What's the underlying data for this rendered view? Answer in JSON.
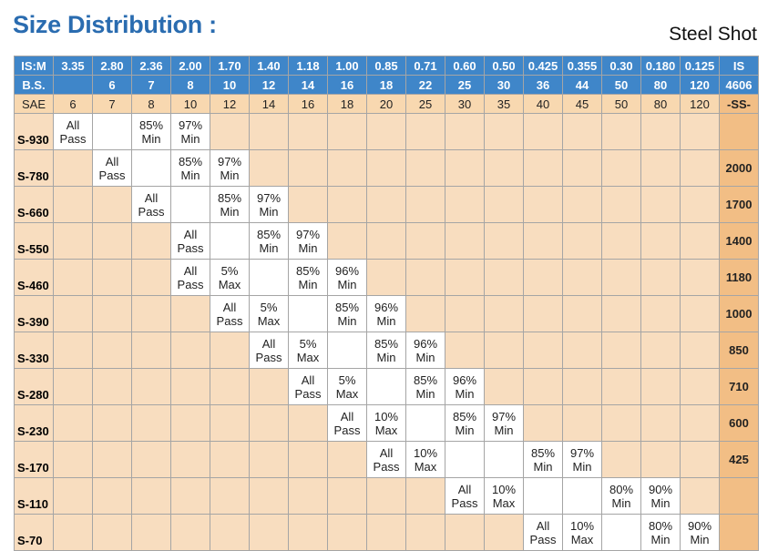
{
  "title": "Size Distribution :",
  "subtitle": "Steel Shot",
  "headers": {
    "ism": {
      "label": "IS:M",
      "values": [
        "3.35",
        "2.80",
        "2.36",
        "2.00",
        "1.70",
        "1.40",
        "1.18",
        "1.00",
        "0.85",
        "0.71",
        "0.60",
        "0.50",
        "0.425",
        "0.355",
        "0.30",
        "0.180",
        "0.125"
      ],
      "last": "IS"
    },
    "bs": {
      "label": "B.S.",
      "values": [
        "",
        "6",
        "7",
        "8",
        "10",
        "12",
        "14",
        "16",
        "18",
        "22",
        "25",
        "30",
        "36",
        "44",
        "50",
        "80",
        "120"
      ],
      "last": "4606"
    },
    "sae": {
      "label": "SAE",
      "values": [
        "6",
        "7",
        "8",
        "10",
        "12",
        "14",
        "16",
        "18",
        "20",
        "25",
        "30",
        "35",
        "40",
        "45",
        "50",
        "80",
        "120"
      ],
      "last": "-SS-"
    }
  },
  "rows": [
    {
      "label": "S-930",
      "cells": [
        {
          "c": 0,
          "l1": "All",
          "l2": "Pass"
        },
        {
          "c": 2,
          "l1": "85%",
          "l2": "Min"
        },
        {
          "c": 3,
          "l1": "97%",
          "l2": "Min"
        }
      ],
      "white": [
        0,
        1,
        2,
        3
      ],
      "last": ""
    },
    {
      "label": "S-780",
      "cells": [
        {
          "c": 1,
          "l1": "All",
          "l2": "Pass"
        },
        {
          "c": 3,
          "l1": "85%",
          "l2": "Min"
        },
        {
          "c": 4,
          "l1": "97%",
          "l2": "Min"
        }
      ],
      "white": [
        1,
        2,
        3,
        4
      ],
      "last": "2000"
    },
    {
      "label": "S-660",
      "cells": [
        {
          "c": 2,
          "l1": "All",
          "l2": "Pass"
        },
        {
          "c": 4,
          "l1": "85%",
          "l2": "Min"
        },
        {
          "c": 5,
          "l1": "97%",
          "l2": "Min"
        }
      ],
      "white": [
        2,
        3,
        4,
        5
      ],
      "last": "1700"
    },
    {
      "label": "S-550",
      "cells": [
        {
          "c": 3,
          "l1": "All",
          "l2": "Pass"
        },
        {
          "c": 5,
          "l1": "85%",
          "l2": "Min"
        },
        {
          "c": 6,
          "l1": "97%",
          "l2": "Min"
        }
      ],
      "white": [
        3,
        4,
        5,
        6
      ],
      "last": "1400"
    },
    {
      "label": "S-460",
      "cells": [
        {
          "c": 3,
          "l1": "All",
          "l2": "Pass"
        },
        {
          "c": 4,
          "l1": "5%",
          "l2": "Max"
        },
        {
          "c": 6,
          "l1": "85%",
          "l2": "Min"
        },
        {
          "c": 7,
          "l1": "96%",
          "l2": "Min"
        }
      ],
      "white": [
        3,
        4,
        5,
        6,
        7
      ],
      "last": "1180"
    },
    {
      "label": "S-390",
      "cells": [
        {
          "c": 4,
          "l1": "All",
          "l2": "Pass"
        },
        {
          "c": 5,
          "l1": "5%",
          "l2": "Max"
        },
        {
          "c": 7,
          "l1": "85%",
          "l2": "Min"
        },
        {
          "c": 8,
          "l1": "96%",
          "l2": "Min"
        }
      ],
      "white": [
        4,
        5,
        6,
        7,
        8
      ],
      "last": "1000"
    },
    {
      "label": "S-330",
      "cells": [
        {
          "c": 5,
          "l1": "All",
          "l2": "Pass"
        },
        {
          "c": 6,
          "l1": "5%",
          "l2": "Max"
        },
        {
          "c": 8,
          "l1": "85%",
          "l2": "Min"
        },
        {
          "c": 9,
          "l1": "96%",
          "l2": "Min"
        }
      ],
      "white": [
        5,
        6,
        7,
        8,
        9
      ],
      "last": "850"
    },
    {
      "label": "S-280",
      "cells": [
        {
          "c": 6,
          "l1": "All",
          "l2": "Pass"
        },
        {
          "c": 7,
          "l1": "5%",
          "l2": "Max"
        },
        {
          "c": 9,
          "l1": "85%",
          "l2": "Min"
        },
        {
          "c": 10,
          "l1": "96%",
          "l2": "Min"
        }
      ],
      "white": [
        6,
        7,
        8,
        9,
        10
      ],
      "last": "710"
    },
    {
      "label": "S-230",
      "cells": [
        {
          "c": 7,
          "l1": "All",
          "l2": "Pass"
        },
        {
          "c": 8,
          "l1": "10%",
          "l2": "Max"
        },
        {
          "c": 10,
          "l1": "85%",
          "l2": "Min"
        },
        {
          "c": 11,
          "l1": "97%",
          "l2": "Min"
        }
      ],
      "white": [
        7,
        8,
        9,
        10,
        11
      ],
      "last": "600"
    },
    {
      "label": "S-170",
      "cells": [
        {
          "c": 8,
          "l1": "All",
          "l2": "Pass"
        },
        {
          "c": 9,
          "l1": "10%",
          "l2": "Max"
        },
        {
          "c": 12,
          "l1": "85%",
          "l2": "Min"
        },
        {
          "c": 13,
          "l1": "97%",
          "l2": "Min"
        }
      ],
      "white": [
        8,
        9,
        10,
        11,
        12,
        13
      ],
      "last": "425"
    },
    {
      "label": "S-110",
      "cells": [
        {
          "c": 10,
          "l1": "All",
          "l2": "Pass"
        },
        {
          "c": 11,
          "l1": "10%",
          "l2": "Max"
        },
        {
          "c": 14,
          "l1": "80%",
          "l2": "Min"
        },
        {
          "c": 15,
          "l1": "90%",
          "l2": "Min"
        }
      ],
      "white": [
        10,
        11,
        12,
        13,
        14,
        15
      ],
      "last": ""
    },
    {
      "label": "S-70",
      "cells": [
        {
          "c": 12,
          "l1": "All",
          "l2": "Pass"
        },
        {
          "c": 13,
          "l1": "10%",
          "l2": "Max"
        },
        {
          "c": 15,
          "l1": "80%",
          "l2": "Min"
        },
        {
          "c": 16,
          "l1": "90%",
          "l2": "Min"
        }
      ],
      "white": [
        12,
        13,
        14,
        15,
        16
      ],
      "last": ""
    }
  ]
}
